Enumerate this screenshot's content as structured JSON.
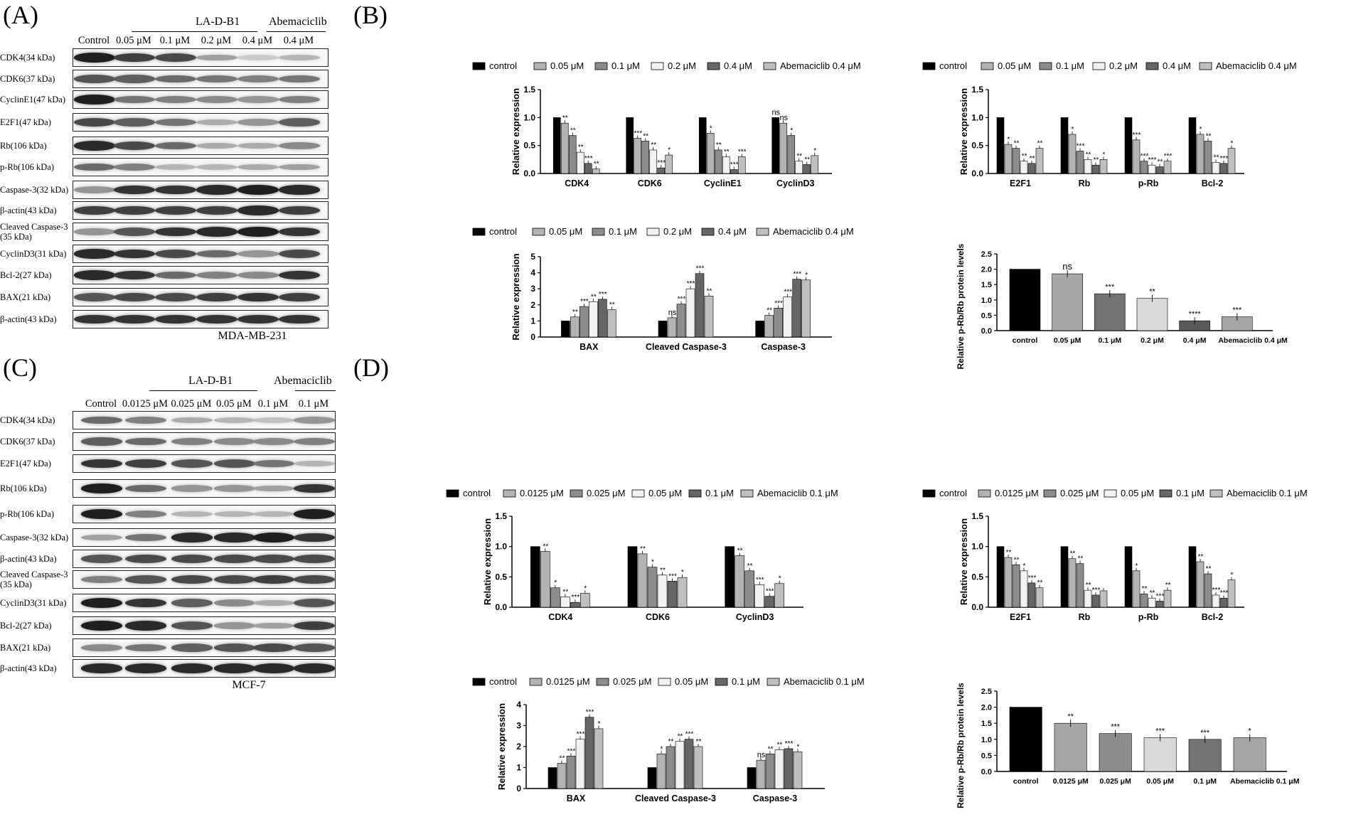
{
  "panels": {
    "A": {
      "label": "(A)",
      "group_label": "LA-D-B1",
      "abema_label": "Abemaciclib",
      "columns": [
        "Control",
        "0.05 μM",
        "0.1 μM",
        "0.2 μM",
        "0.4 μM",
        "0.4 μM"
      ],
      "rows": [
        {
          "label": "CDK4(34 kDa)",
          "intensity": [
            0.95,
            0.8,
            0.75,
            0.35,
            0.15,
            0.25
          ]
        },
        {
          "label": "CDK6(37 kDa)",
          "intensity": [
            0.7,
            0.65,
            0.6,
            0.55,
            0.5,
            0.55
          ]
        },
        {
          "label": "CyclinE1(47 kDa)",
          "intensity": [
            0.95,
            0.55,
            0.5,
            0.45,
            0.4,
            0.5
          ]
        },
        {
          "label": "E2F1(47 kDa)",
          "intensity": [
            0.75,
            0.65,
            0.55,
            0.3,
            0.4,
            0.65
          ]
        },
        {
          "label": "Rb(106 kDa)",
          "intensity": [
            0.9,
            0.75,
            0.6,
            0.3,
            0.3,
            0.45
          ]
        },
        {
          "label": "p-Rb(106 kDa)",
          "intensity": [
            0.6,
            0.5,
            0.25,
            0.25,
            0.3,
            0.35
          ]
        },
        {
          "label": "Caspase-3(32 kDa)",
          "intensity": [
            0.4,
            0.85,
            0.85,
            0.9,
            0.95,
            0.9
          ]
        },
        {
          "label": "β-actin(43 kDa)",
          "intensity": [
            0.8,
            0.8,
            0.8,
            0.8,
            0.9,
            0.8
          ]
        },
        {
          "label": "Cleaved Caspase-3\n(35 kDa)",
          "intensity": [
            0.4,
            0.7,
            0.85,
            0.9,
            0.95,
            0.85
          ]
        },
        {
          "label": "CyclinD3(31 kDa)",
          "intensity": [
            0.9,
            0.85,
            0.75,
            0.6,
            0.4,
            0.75
          ]
        },
        {
          "label": "Bcl-2(27 kDa)",
          "intensity": [
            0.9,
            0.85,
            0.6,
            0.5,
            0.45,
            0.85
          ]
        },
        {
          "label": "BAX(21 kDa)",
          "intensity": [
            0.7,
            0.75,
            0.75,
            0.8,
            0.85,
            0.8
          ]
        },
        {
          "label": "β-actin(43 kDa)",
          "intensity": [
            0.85,
            0.85,
            0.85,
            0.85,
            0.85,
            0.85
          ]
        }
      ],
      "cell_line": "MDA-MB-231"
    },
    "B": {
      "label": "(B)"
    },
    "C": {
      "label": "(C)",
      "group_label": "LA-D-B1",
      "abema_label": "Abemaciclib",
      "columns": [
        "Control",
        "0.0125 μM",
        "0.025 μM",
        "0.05 μM",
        "0.1 μM",
        "0.1 μM"
      ],
      "rows": [
        {
          "label": "CDK4(34 kDa)",
          "intensity": [
            0.6,
            0.5,
            0.3,
            0.25,
            0.2,
            0.4
          ]
        },
        {
          "label": "CDK6(37 kDa)",
          "intensity": [
            0.65,
            0.6,
            0.5,
            0.45,
            0.45,
            0.5
          ]
        },
        {
          "label": "E2F1(47 kDa)",
          "intensity": [
            0.85,
            0.8,
            0.7,
            0.7,
            0.55,
            0.25
          ]
        },
        {
          "label": "Rb(106 kDa)",
          "intensity": [
            0.95,
            0.6,
            0.4,
            0.4,
            0.35,
            0.85
          ]
        },
        {
          "label": "p-Rb(106 kDa)",
          "intensity": [
            0.95,
            0.5,
            0.25,
            0.25,
            0.25,
            0.95
          ]
        },
        {
          "label": "Caspase-3(32 kDa)",
          "intensity": [
            0.35,
            0.55,
            0.9,
            0.9,
            0.95,
            0.85
          ]
        },
        {
          "label": "β-actin(43 kDa)",
          "intensity": [
            0.7,
            0.75,
            0.75,
            0.75,
            0.75,
            0.75
          ]
        },
        {
          "label": "Cleaved Caspase-3\n(35 kDa)",
          "intensity": [
            0.5,
            0.7,
            0.75,
            0.75,
            0.8,
            0.75
          ]
        },
        {
          "label": "CyclinD3(31 kDa)",
          "intensity": [
            0.95,
            0.85,
            0.65,
            0.45,
            0.3,
            0.7
          ]
        },
        {
          "label": "Bcl-2(27 kDa)",
          "intensity": [
            0.95,
            0.9,
            0.7,
            0.4,
            0.35,
            0.8
          ]
        },
        {
          "label": "BAX(21 kDa)",
          "intensity": [
            0.45,
            0.55,
            0.65,
            0.7,
            0.75,
            0.7
          ]
        },
        {
          "label": "β-actin(43 kDa)",
          "intensity": [
            0.9,
            0.9,
            0.9,
            0.9,
            0.9,
            0.9
          ]
        }
      ],
      "cell_line": "MCF-7"
    },
    "D": {
      "label": "(D)"
    }
  },
  "legend_b": [
    "control",
    "0.05 μM",
    "0.1 μM",
    "0.2 μM",
    "0.4 μM",
    "Abemaciclib 0.4 μM"
  ],
  "legend_b3": [
    "control",
    "0.05 μM",
    "0.1 μM",
    "0.2 μM",
    "0.4 μM",
    "Abemaciclib 0.4 μM"
  ],
  "legend_d": [
    "control",
    "0.0125 μM",
    "0.025 μM",
    "0.05 μM",
    "0.1 μM",
    "Abemaciclib 0.1 μM"
  ],
  "series_colors": [
    "#000000",
    "#b3b3b3",
    "#8c8c8c",
    "#f2f2f2",
    "#666666",
    "#bfbfbf"
  ],
  "chart_data": [
    {
      "id": "B1",
      "type": "bar",
      "ylabel": "Relative expression",
      "ylim": [
        0,
        1.5
      ],
      "yticks": [
        "0.0",
        "0.5",
        "1.0",
        "1.5"
      ],
      "categories": [
        "CDK4",
        "CDK6",
        "CyclinE1",
        "CyclinD3"
      ],
      "series_values": [
        [
          1,
          1,
          1,
          1
        ],
        [
          0.9,
          0.63,
          0.72,
          0.9
        ],
        [
          0.68,
          0.58,
          0.42,
          0.68
        ],
        [
          0.38,
          0.42,
          0.3,
          0.22
        ],
        [
          0.18,
          0.1,
          0.07,
          0.16
        ],
        [
          0.08,
          0.33,
          0.3,
          0.32
        ]
      ],
      "marks": [
        [
          "",
          "",
          "",
          "ns"
        ],
        [
          "**",
          "***",
          "*",
          "ns"
        ],
        [
          "**",
          "**",
          "**",
          "*"
        ],
        [
          "**",
          "**",
          "**",
          "**"
        ],
        [
          "***",
          "***",
          "***",
          "**"
        ],
        [
          "**",
          "*",
          "***",
          "*"
        ]
      ]
    },
    {
      "id": "B2",
      "type": "bar",
      "ylabel": "Relative expression",
      "ylim": [
        0,
        1.5
      ],
      "yticks": [
        "0.0",
        "0.5",
        "1.0",
        "1.5"
      ],
      "categories": [
        "E2F1",
        "Rb",
        "p-Rb",
        "Bcl-2"
      ],
      "series_values": [
        [
          1,
          1,
          1,
          1
        ],
        [
          0.52,
          0.7,
          0.6,
          0.7
        ],
        [
          0.45,
          0.4,
          0.22,
          0.58
        ],
        [
          0.22,
          0.25,
          0.15,
          0.2
        ],
        [
          0.18,
          0.15,
          0.12,
          0.18
        ],
        [
          0.45,
          0.25,
          0.22,
          0.45
        ]
      ],
      "marks": [
        [
          "",
          "",
          "",
          ""
        ],
        [
          "*",
          "*",
          "***",
          "*"
        ],
        [
          "**",
          "***",
          "***",
          "**"
        ],
        [
          "**",
          "**",
          "***",
          "**"
        ],
        [
          "**",
          "**",
          "**",
          "***"
        ],
        [
          "**",
          "*",
          "***",
          "*"
        ]
      ]
    },
    {
      "id": "B3",
      "type": "bar",
      "ylabel": "Relative expression",
      "ylim": [
        0,
        5
      ],
      "yticks": [
        "0",
        "1",
        "2",
        "3",
        "4",
        "5"
      ],
      "categories": [
        "BAX",
        "Cleaved Caspase-3",
        "Caspase-3"
      ],
      "series_values": [
        [
          1,
          1,
          1
        ],
        [
          1.25,
          1.2,
          1.35
        ],
        [
          1.9,
          2.05,
          1.8
        ],
        [
          2.2,
          3.0,
          2.5
        ],
        [
          2.35,
          3.95,
          3.6
        ],
        [
          1.7,
          2.55,
          3.55
        ]
      ],
      "marks": [
        [
          "",
          "",
          ""
        ],
        [
          "**",
          "ns",
          "**"
        ],
        [
          "***",
          "***",
          "***"
        ],
        [
          "**",
          "***",
          "***"
        ],
        [
          "***",
          "***",
          "***"
        ],
        [
          "**",
          "**",
          "*"
        ]
      ]
    },
    {
      "id": "B4",
      "type": "bar",
      "ylabel": "Relative p-Rb/Rb protein levels",
      "ylim": [
        0,
        2.5
      ],
      "yticks": [
        "0.0",
        "0.5",
        "1.0",
        "1.5",
        "2.0",
        "2.5"
      ],
      "categories": [
        "control",
        "0.05 μM",
        "0.1 μM",
        "0.2 μM",
        "0.4 μM",
        "Abemaciclib 0.4 μM"
      ],
      "values": [
        2.0,
        1.85,
        1.2,
        1.05,
        0.32,
        0.45
      ],
      "marks": [
        "",
        "ns",
        "***",
        "**",
        "****",
        "***"
      ]
    },
    {
      "id": "D1",
      "type": "bar",
      "ylabel": "Relative expression",
      "ylim": [
        0,
        1.5
      ],
      "yticks": [
        "0.0",
        "0.5",
        "1.0",
        "1.5"
      ],
      "categories": [
        "CDK4",
        "CDK6",
        "CyclinD3"
      ],
      "series_values": [
        [
          1,
          1,
          1
        ],
        [
          0.92,
          0.88,
          0.85
        ],
        [
          0.32,
          0.66,
          0.6
        ],
        [
          0.17,
          0.53,
          0.37
        ],
        [
          0.08,
          0.43,
          0.18
        ],
        [
          0.23,
          0.49,
          0.39
        ]
      ],
      "marks": [
        [
          "",
          "",
          ""
        ],
        [
          "**",
          "**",
          "**"
        ],
        [
          "*",
          "*",
          "**"
        ],
        [
          "**",
          "**",
          "***"
        ],
        [
          "***",
          "***",
          "***"
        ],
        [
          "*",
          "*",
          "*"
        ]
      ]
    },
    {
      "id": "D2",
      "type": "bar",
      "ylabel": "Relative expression",
      "ylim": [
        0,
        1.5
      ],
      "yticks": [
        "0.0",
        "0.5",
        "1.0",
        "1.5"
      ],
      "categories": [
        "E2F1",
        "Rb",
        "p-Rb",
        "Bcl-2"
      ],
      "series_values": [
        [
          1,
          1,
          1,
          1
        ],
        [
          0.82,
          0.8,
          0.6,
          0.75
        ],
        [
          0.7,
          0.72,
          0.22,
          0.55
        ],
        [
          0.6,
          0.28,
          0.15,
          0.2
        ],
        [
          0.4,
          0.2,
          0.1,
          0.15
        ],
        [
          0.32,
          0.27,
          0.28,
          0.45
        ]
      ],
      "marks": [
        [
          "",
          "",
          "",
          ""
        ],
        [
          "**",
          "**",
          "*",
          "**"
        ],
        [
          "**",
          "**",
          "**",
          "**"
        ],
        [
          "*",
          "**",
          "**",
          "***"
        ],
        [
          "***",
          "***",
          "***",
          "***"
        ],
        [
          "**",
          "",
          "**",
          "*"
        ]
      ]
    },
    {
      "id": "D3",
      "type": "bar",
      "ylabel": "Relative expression",
      "ylim": [
        0,
        4
      ],
      "yticks": [
        "0",
        "1",
        "2",
        "3",
        "4"
      ],
      "categories": [
        "BAX",
        "Cleaved Caspase-3",
        "Caspase-3"
      ],
      "series_values": [
        [
          1,
          1,
          1
        ],
        [
          1.2,
          1.65,
          1.35
        ],
        [
          1.55,
          2.0,
          1.65
        ],
        [
          2.35,
          2.25,
          1.85
        ],
        [
          3.4,
          2.35,
          1.9
        ],
        [
          2.85,
          2.0,
          1.75
        ]
      ],
      "marks": [
        [
          "",
          "",
          ""
        ],
        [
          "**",
          "*",
          "ns"
        ],
        [
          "***",
          "**",
          "**"
        ],
        [
          "***",
          "**",
          "**"
        ],
        [
          "***",
          "***",
          "***"
        ],
        [
          "*",
          "**",
          "*"
        ]
      ]
    },
    {
      "id": "D4",
      "type": "bar",
      "ylabel": "Relative p-Rb/Rb protein levels",
      "ylim": [
        0,
        2.5
      ],
      "yticks": [
        "0.0",
        "0.5",
        "1.0",
        "1.5",
        "2.0",
        "2.5"
      ],
      "categories": [
        "control",
        "0.0125 μM",
        "0.025 μM",
        "0.05 μM",
        "0.1 μM",
        "Abemaciclib 0.1 μM"
      ],
      "values": [
        2.0,
        1.5,
        1.18,
        1.05,
        1.0,
        1.05
      ],
      "marks": [
        "",
        "**",
        "***",
        "***",
        "***",
        "*"
      ]
    }
  ]
}
